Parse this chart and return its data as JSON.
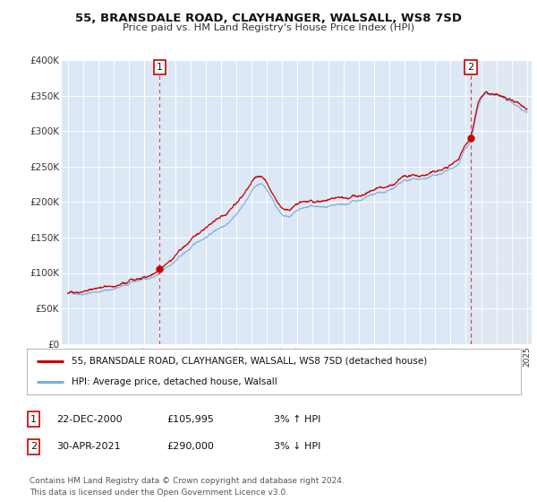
{
  "title1": "55, BRANSDALE ROAD, CLAYHANGER, WALSALL, WS8 7SD",
  "title2": "Price paid vs. HM Land Registry's House Price Index (HPI)",
  "legend_line1": "55, BRANSDALE ROAD, CLAYHANGER, WALSALL, WS8 7SD (detached house)",
  "legend_line2": "HPI: Average price, detached house, Walsall",
  "annotation1_label": "1",
  "annotation1_date": "22-DEC-2000",
  "annotation1_price": "£105,995",
  "annotation1_hpi": "3% ↑ HPI",
  "annotation2_label": "2",
  "annotation2_date": "30-APR-2021",
  "annotation2_price": "£290,000",
  "annotation2_hpi": "3% ↓ HPI",
  "footer": "Contains HM Land Registry data © Crown copyright and database right 2024.\nThis data is licensed under the Open Government Licence v3.0.",
  "red_line_color": "#cc0000",
  "blue_line_color": "#7aaddc",
  "plot_bg_color": "#dce8f5",
  "annotation_border_color": "#cc0000",
  "vline_color": "#cc0000",
  "year_start": 1995,
  "year_end": 2025,
  "ymin": 0,
  "ymax": 400000,
  "sale1_year": 2001.0,
  "sale1_value": 105995,
  "sale2_year": 2021.33,
  "sale2_value": 290000,
  "seed": 42
}
